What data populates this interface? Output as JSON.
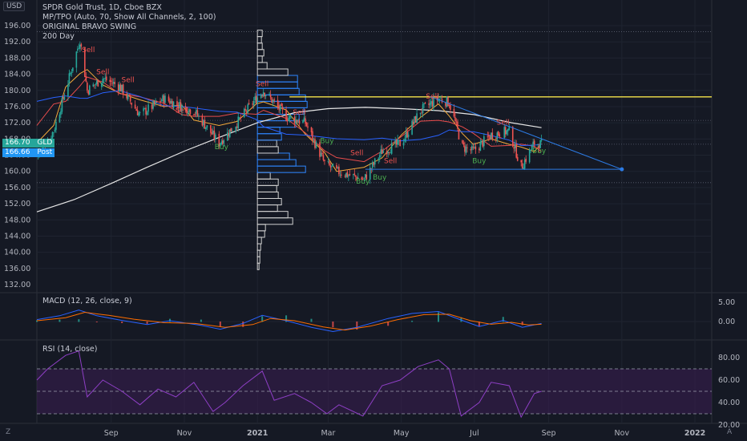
{
  "header": {
    "symbol_line": "SPDR Gold Trust, 1D, Cboe BZX",
    "indicator_1": "MP/TPO (Auto, 70, Show All Channels, 2, 100)",
    "indicator_2": "ORIGINAL BRAVO SWING",
    "indicator_3": "200 Day",
    "currency_button": "USD"
  },
  "price_tags": [
    {
      "value": "166.70",
      "label": "GLD",
      "color": "#26a69a"
    },
    {
      "value": "166.66",
      "label": "Post",
      "color": "#2196f3"
    }
  ],
  "panes": {
    "macd_title": "MACD (12, 26, close, 9)",
    "rsi_title": "RSI (14, close)"
  },
  "footer": {
    "left_icon": "Z",
    "right_icon": "A"
  },
  "colors": {
    "background": "#151924",
    "grid": "#1f2430",
    "axis_text": "#b2b5be",
    "up_candle": "#26a69a",
    "down_candle": "#ef5350",
    "ma_fast": "#f2a93b",
    "ma_mid": "#e84c4c",
    "ma_slow": "#2962ff",
    "ma_200": "#e6e6e6",
    "resistance": "#f5e44a",
    "trendline": "#2c7be5",
    "volume_profile": "#d0d0d0",
    "volume_profile_value_area": "#2e86ff",
    "macd": "#2962ff",
    "macd_signal": "#ff6d00",
    "rsi": "#8e3fc5",
    "rsi_band": "#3b1d52"
  },
  "chart_data": [
    {
      "type": "candlestick",
      "title": "SPDR Gold Trust, 1D, Cboe BZX",
      "x_ticks": [
        "Sep",
        "Nov",
        "2021",
        "Mar",
        "May",
        "Jul",
        "Sep",
        "Nov",
        "2022"
      ],
      "y_ticks": [
        136,
        140,
        144,
        148,
        152,
        156,
        160,
        164,
        168,
        172,
        176,
        180,
        184,
        188,
        192,
        196
      ],
      "y_tick_labels": [
        "136.00",
        "140.00",
        "144.00",
        "148.00",
        "152.00",
        "156.00",
        "160.00",
        "164.00",
        "168.00",
        "172.00",
        "176.00",
        "180.00",
        "184.00",
        "188.00",
        "192.00",
        "196.00"
      ],
      "extra_y_label": "132.00",
      "ylim": [
        131,
        198
      ],
      "x_range": [
        "2020-07-01",
        "2022-01-15"
      ],
      "close_points": [
        [
          "2020-07-01",
          164
        ],
        [
          "2020-07-15",
          170
        ],
        [
          "2020-07-25",
          180
        ],
        [
          "2020-08-06",
          192.5
        ],
        [
          "2020-08-12",
          180
        ],
        [
          "2020-08-25",
          183
        ],
        [
          "2020-09-08",
          181
        ],
        [
          "2020-09-25",
          174
        ],
        [
          "2020-10-15",
          178
        ],
        [
          "2020-10-30",
          176
        ],
        [
          "2020-11-09",
          175
        ],
        [
          "2020-11-30",
          167
        ],
        [
          "2020-12-15",
          172
        ],
        [
          "2020-12-31",
          178
        ],
        [
          "2021-01-06",
          180
        ],
        [
          "2021-01-25",
          173.5
        ],
        [
          "2021-02-10",
          172
        ],
        [
          "2021-02-26",
          162
        ],
        [
          "2021-03-08",
          160
        ],
        [
          "2021-03-31",
          158
        ],
        [
          "2021-04-15",
          165
        ],
        [
          "2021-05-01",
          167
        ],
        [
          "2021-05-17",
          175
        ],
        [
          "2021-06-01",
          178
        ],
        [
          "2021-06-10",
          177
        ],
        [
          "2021-06-21",
          166
        ],
        [
          "2021-06-30",
          165
        ],
        [
          "2021-07-15",
          169
        ],
        [
          "2021-07-30",
          170
        ],
        [
          "2021-08-09",
          161
        ],
        [
          "2021-08-20",
          167
        ],
        [
          "2021-08-26",
          166.7
        ]
      ],
      "resistance_level": 178.4,
      "support_level": 160.5,
      "triangle": {
        "start": [
          "2021-05-25",
          178.5
        ],
        "apex": [
          "2021-11-01",
          160.5
        ]
      },
      "ma_200_points": [
        [
          "2020-07-01",
          150
        ],
        [
          "2020-08-01",
          153
        ],
        [
          "2020-09-01",
          157
        ],
        [
          "2020-10-01",
          161
        ],
        [
          "2020-11-01",
          165
        ],
        [
          "2020-12-01",
          168.5
        ],
        [
          "2021-01-01",
          172
        ],
        [
          "2021-02-01",
          174.5
        ],
        [
          "2021-03-01",
          175.5
        ],
        [
          "2021-04-01",
          175.8
        ],
        [
          "2021-05-01",
          175.5
        ],
        [
          "2021-06-01",
          175
        ],
        [
          "2021-07-01",
          174
        ],
        [
          "2021-08-01",
          172
        ],
        [
          "2021-08-26",
          170.8
        ]
      ],
      "signals": [
        {
          "text": "Sell",
          "date": "2020-08-13",
          "price": 189.5
        },
        {
          "text": "Sell",
          "date": "2020-08-25",
          "price": 184
        },
        {
          "text": "Sell",
          "date": "2020-09-15",
          "price": 182
        },
        {
          "text": "Sell",
          "date": "2020-10-30",
          "price": 174.5
        },
        {
          "text": "Buy",
          "date": "2020-12-02",
          "price": 165.5
        },
        {
          "text": "Sell",
          "date": "2021-01-05",
          "price": 181
        },
        {
          "text": "Sell",
          "date": "2021-02-05",
          "price": 174
        },
        {
          "text": "Buy",
          "date": "2021-02-28",
          "price": 167
        },
        {
          "text": "Sell",
          "date": "2021-03-25",
          "price": 164
        },
        {
          "text": "Buy",
          "date": "2021-03-30",
          "price": 157
        },
        {
          "text": "Sell",
          "date": "2021-04-22",
          "price": 162
        },
        {
          "text": "Buy",
          "date": "2021-04-13",
          "price": 158
        },
        {
          "text": "Sell",
          "date": "2021-05-27",
          "price": 178
        },
        {
          "text": "Buy",
          "date": "2021-07-05",
          "price": 162
        },
        {
          "text": "Sell",
          "date": "2021-07-25",
          "price": 171.5
        },
        {
          "text": "Buy",
          "date": "2021-08-24",
          "price": 164.5
        }
      ],
      "volume_profile": {
        "rows_price_step": 1.6,
        "rows": [
          [
            136.5,
            2
          ],
          [
            138.1,
            3
          ],
          [
            139.7,
            3
          ],
          [
            141.3,
            4
          ],
          [
            142.9,
            5
          ],
          [
            144.5,
            9
          ],
          [
            146.1,
            10
          ],
          [
            147.7,
            44
          ],
          [
            149.3,
            38
          ],
          [
            150.9,
            25
          ],
          [
            152.5,
            30
          ],
          [
            154.1,
            26
          ],
          [
            155.7,
            24
          ],
          [
            157.3,
            26
          ],
          [
            158.9,
            16
          ],
          [
            160.5,
            60,
            "va"
          ],
          [
            162.1,
            48,
            "va"
          ],
          [
            163.7,
            40,
            "va"
          ],
          [
            165.3,
            26
          ],
          [
            166.9,
            24
          ],
          [
            168.5,
            30,
            "va"
          ],
          [
            170.1,
            28,
            "va"
          ],
          [
            171.7,
            48,
            "va"
          ],
          [
            173.3,
            52,
            "va"
          ],
          [
            174.9,
            58,
            "va"
          ],
          [
            176.5,
            62,
            "va"
          ],
          [
            178.1,
            60,
            "va"
          ],
          [
            179.7,
            52,
            "va"
          ],
          [
            181.3,
            50,
            "va"
          ],
          [
            182.9,
            50,
            "va"
          ],
          [
            184.5,
            38
          ],
          [
            186.1,
            12
          ],
          [
            187.7,
            6
          ],
          [
            189.3,
            8
          ],
          [
            190.9,
            6
          ],
          [
            192.5,
            5
          ],
          [
            194.1,
            6
          ]
        ]
      }
    },
    {
      "type": "line",
      "title": "MACD (12, 26, close, 9)",
      "y_ticks": [
        0,
        5
      ],
      "y_tick_labels": [
        "0.00",
        "5.00"
      ],
      "ylim": [
        -5,
        7
      ],
      "macd": [
        [
          "2020-07-01",
          0.5
        ],
        [
          "2020-07-20",
          1.5
        ],
        [
          "2020-08-05",
          3
        ],
        [
          "2020-08-20",
          1.5
        ],
        [
          "2020-09-10",
          0.3
        ],
        [
          "2020-10-01",
          -0.8
        ],
        [
          "2020-10-20",
          0.2
        ],
        [
          "2020-11-15",
          -1
        ],
        [
          "2020-12-01",
          -2
        ],
        [
          "2020-12-20",
          -0.5
        ],
        [
          "2021-01-05",
          1.6
        ],
        [
          "2021-01-25",
          0.2
        ],
        [
          "2021-02-15",
          -1.5
        ],
        [
          "2021-03-05",
          -2.6
        ],
        [
          "2021-03-25",
          -1.5
        ],
        [
          "2021-04-20",
          0.8
        ],
        [
          "2021-05-10",
          2.1
        ],
        [
          "2021-06-01",
          2.6
        ],
        [
          "2021-06-20",
          0.4
        ],
        [
          "2021-07-05",
          -1.3
        ],
        [
          "2021-07-25",
          0.3
        ],
        [
          "2021-08-10",
          -1.5
        ],
        [
          "2021-08-26",
          -0.5
        ]
      ],
      "signal": [
        [
          "2020-07-01",
          0.2
        ],
        [
          "2020-07-25",
          1
        ],
        [
          "2020-08-10",
          2.4
        ],
        [
          "2020-08-30",
          1.6
        ],
        [
          "2020-09-20",
          0.6
        ],
        [
          "2020-10-15",
          -0.3
        ],
        [
          "2020-11-10",
          -0.5
        ],
        [
          "2020-12-05",
          -1.5
        ],
        [
          "2020-12-28",
          -0.8
        ],
        [
          "2021-01-12",
          0.8
        ],
        [
          "2021-02-01",
          0.2
        ],
        [
          "2021-02-25",
          -1.4
        ],
        [
          "2021-03-15",
          -2.2
        ],
        [
          "2021-04-05",
          -1.2
        ],
        [
          "2021-04-28",
          0.5
        ],
        [
          "2021-05-20",
          1.8
        ],
        [
          "2021-06-10",
          1.9
        ],
        [
          "2021-06-28",
          0.2
        ],
        [
          "2021-07-15",
          -0.7
        ],
        [
          "2021-08-01",
          -0.2
        ],
        [
          "2021-08-15",
          -0.9
        ],
        [
          "2021-08-26",
          -0.7
        ]
      ]
    },
    {
      "type": "line",
      "title": "RSI (14, close)",
      "y_ticks": [
        20,
        40,
        60,
        80
      ],
      "y_tick_labels": [
        "20.00",
        "40.00",
        "60.00",
        "80.00"
      ],
      "band": [
        30,
        70
      ],
      "midline": 50,
      "ylim": [
        15,
        95
      ],
      "rsi": [
        [
          "2020-07-01",
          60
        ],
        [
          "2020-07-10",
          70
        ],
        [
          "2020-07-25",
          82
        ],
        [
          "2020-08-05",
          86
        ],
        [
          "2020-08-12",
          45
        ],
        [
          "2020-08-25",
          60
        ],
        [
          "2020-09-10",
          50
        ],
        [
          "2020-09-25",
          38
        ],
        [
          "2020-10-10",
          52
        ],
        [
          "2020-10-25",
          45
        ],
        [
          "2020-11-09",
          58
        ],
        [
          "2020-11-25",
          32
        ],
        [
          "2020-12-05",
          40
        ],
        [
          "2020-12-20",
          55
        ],
        [
          "2021-01-05",
          68
        ],
        [
          "2021-01-15",
          42
        ],
        [
          "2021-02-01",
          48
        ],
        [
          "2021-02-15",
          40
        ],
        [
          "2021-02-28",
          30
        ],
        [
          "2021-03-10",
          38
        ],
        [
          "2021-03-30",
          28
        ],
        [
          "2021-04-15",
          55
        ],
        [
          "2021-04-30",
          60
        ],
        [
          "2021-05-15",
          72
        ],
        [
          "2021-06-01",
          78
        ],
        [
          "2021-06-10",
          70
        ],
        [
          "2021-06-20",
          28
        ],
        [
          "2021-07-05",
          40
        ],
        [
          "2021-07-15",
          58
        ],
        [
          "2021-07-30",
          55
        ],
        [
          "2021-08-09",
          27
        ],
        [
          "2021-08-20",
          48
        ],
        [
          "2021-08-26",
          50
        ]
      ]
    }
  ]
}
